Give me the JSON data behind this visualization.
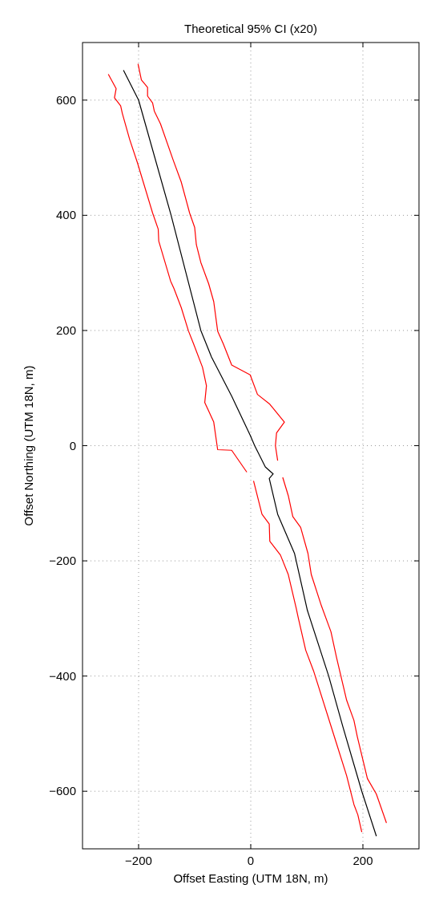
{
  "chart_data": {
    "type": "line",
    "title": "Theoretical 95% CI (x20)",
    "xlabel": "Offset Easting (UTM 18N, m)",
    "ylabel": "Offset Northing (UTM 18N, m)",
    "xlim": [
      -300,
      300
    ],
    "ylim": [
      -700,
      700
    ],
    "xticks": [
      -200,
      0,
      200
    ],
    "yticks": [
      -600,
      -400,
      -200,
      0,
      200,
      400,
      600
    ],
    "grid": true,
    "series": [
      {
        "color": "#000000",
        "x": [
          -227,
          -200,
          -142,
          -89,
          -70,
          -34,
          -1,
          7,
          26,
          40,
          33,
          48,
          78,
          101,
          139,
          164,
          198,
          224
        ],
        "values": [
          652,
          600,
          400,
          200,
          154,
          86,
          18,
          0,
          -37,
          -49,
          -57,
          -119,
          -187,
          -286,
          -400,
          -487,
          -600,
          -678
        ]
      },
      {
        "color": "#ff0000",
        "x": [
          -201,
          -195,
          -184,
          -184,
          -175,
          -172,
          -161,
          -138,
          -124,
          -109,
          -100,
          -97,
          -89,
          -75,
          -66,
          -59,
          -49,
          -34,
          -1,
          12,
          34,
          60,
          46,
          44,
          48,
          null,
          57,
          67,
          75,
          89,
          102,
          108,
          126,
          143,
          153,
          171,
          184,
          190,
          208,
          224,
          242
        ],
        "values": [
          663,
          635,
          622,
          607,
          595,
          581,
          559,
          495,
          458,
          404,
          379,
          349,
          318,
          281,
          250,
          199,
          177,
          140,
          123,
          89,
          72,
          41,
          22,
          0,
          -26,
          null,
          -55,
          -87,
          -123,
          -142,
          -187,
          -224,
          -278,
          -323,
          -368,
          -442,
          -477,
          -505,
          -578,
          -605,
          -655
        ]
      },
      {
        "color": "#ff0000",
        "x": [
          -254,
          -240,
          -243,
          -232,
          -229,
          -216,
          -202,
          -175,
          -165,
          -164,
          -143,
          -137,
          -124,
          -111,
          -102,
          -86,
          -79,
          -82,
          -66,
          -59,
          -34,
          -7,
          null,
          5,
          20,
          33,
          34,
          53,
          67,
          81,
          85,
          98,
          112,
          149,
          171,
          184,
          191,
          198
        ],
        "values": [
          645,
          620,
          604,
          590,
          577,
          532,
          491,
          404,
          376,
          355,
          286,
          273,
          240,
          199,
          177,
          136,
          104,
          75,
          41,
          -7,
          -8,
          -46,
          null,
          -61,
          -119,
          -136,
          -166,
          -190,
          -224,
          -282,
          -300,
          -355,
          -391,
          -505,
          -573,
          -623,
          -641,
          -671
        ]
      }
    ]
  }
}
